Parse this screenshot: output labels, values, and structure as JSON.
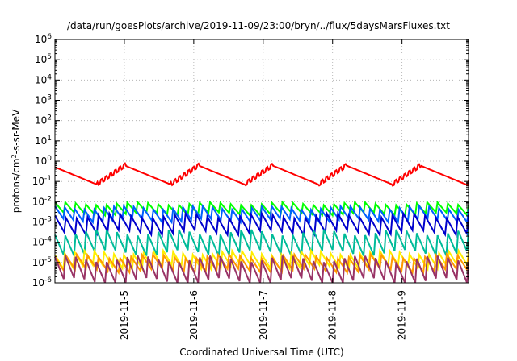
{
  "chart_data": {
    "type": "line",
    "title": "/data/run/goesPlots/archive/2019-11-09/23:00/bryn/../flux/5daysMarsFluxes.txt",
    "xlabel": "Coordinated Universal Time (UTC)",
    "ylabel_parts": [
      "protons/cm",
      "2",
      "-s-sr-MeV"
    ],
    "y_scale": "log",
    "ylim_exponents": [
      -6,
      6
    ],
    "y_tick_exponents": [
      6,
      5,
      4,
      3,
      2,
      1,
      0,
      -1,
      -2,
      -3,
      -4,
      -5,
      -6
    ],
    "xlim_days": [
      "2019-11-04",
      "2019-11-09 23:00"
    ],
    "x_ticks": [
      {
        "date": "2019-11-05",
        "label": "2019-11-5"
      },
      {
        "date": "2019-11-06",
        "label": "2019-11-6"
      },
      {
        "date": "2019-11-07",
        "label": "2019-11-7"
      },
      {
        "date": "2019-11-08",
        "label": "2019-11-8"
      },
      {
        "date": "2019-11-09",
        "label": "2019-11-9"
      }
    ],
    "grid": true,
    "series": [
      {
        "color": "#ff0000",
        "peak": 0.6,
        "trough": 0.07,
        "style": "smooth"
      },
      {
        "color": "#00ff00",
        "peak": 0.008,
        "trough": 0.0025,
        "style": "saw"
      },
      {
        "color": "#0060ff",
        "peak": 0.005,
        "trough": 0.0012,
        "style": "saw"
      },
      {
        "color": "#0000cc",
        "peak": 0.002,
        "trough": 0.0003,
        "style": "saw"
      },
      {
        "color": "#00bb99",
        "peak": 0.0003,
        "trough": 3e-05,
        "style": "saw"
      },
      {
        "color": "#ffee00",
        "peak": 3e-05,
        "trough": 6e-06,
        "style": "saw"
      },
      {
        "color": "#ff9900",
        "peak": 2e-05,
        "trough": 4e-06,
        "style": "saw"
      },
      {
        "color": "#993366",
        "peak": 1.5e-05,
        "trough": 1.2e-06,
        "style": "saw"
      }
    ]
  }
}
